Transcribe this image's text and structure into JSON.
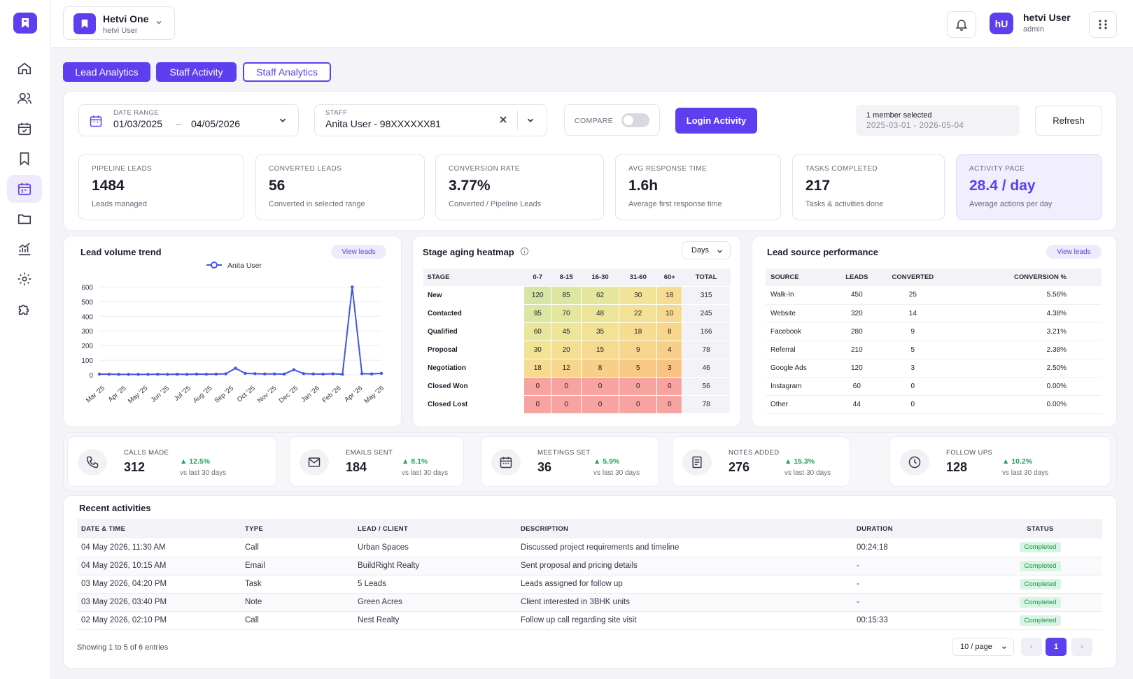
{
  "org": {
    "name": "Hetvi One",
    "sub": "hetvi User"
  },
  "user": {
    "initials": "hU",
    "name": "hetvi User",
    "role": "admin"
  },
  "tabs": [
    "Lead Analytics",
    "Staff Activity",
    "Staff Analytics"
  ],
  "filters": {
    "date_label": "DATE RANGE",
    "date_from": "01/03/2025",
    "date_sep": "–",
    "date_to": "04/05/2026",
    "staff_label": "STAFF",
    "staff_value": "Anita User - 98XXXXXX81",
    "compare_label": "COMPARE",
    "login_btn": "Login Activity",
    "selected_title": "1 member selected",
    "selected_range": "2025-03-01 - 2026-05-04",
    "refresh_btn": "Refresh"
  },
  "kpis": [
    {
      "label": "PIPELINE LEADS",
      "value": "1484",
      "sub": "Leads managed"
    },
    {
      "label": "CONVERTED LEADS",
      "value": "56",
      "sub": "Converted in selected range"
    },
    {
      "label": "CONVERSION RATE",
      "value": "3.77%",
      "sub": "Converted / Pipeline Leads"
    },
    {
      "label": "AVG RESPONSE TIME",
      "value": "1.6h",
      "sub": "Average first response time"
    },
    {
      "label": "TASKS COMPLETED",
      "value": "217",
      "sub": "Tasks & activities done"
    },
    {
      "label": "ACTIVITY PACE",
      "value": "28.4 / day",
      "sub": "Average actions per day"
    }
  ],
  "trend": {
    "title": "Lead volume trend",
    "view_btn": "View leads"
  },
  "chart_data": {
    "type": "line",
    "series": [
      {
        "name": "Anita User",
        "values": [
          5,
          4,
          3,
          3,
          3,
          3,
          4,
          3,
          4,
          3,
          5,
          4,
          5,
          7,
          45,
          10,
          8,
          6,
          6,
          5,
          35,
          8,
          6,
          5,
          7,
          4,
          600,
          8,
          6,
          10
        ]
      }
    ],
    "x": [
      0,
      1,
      2,
      3,
      4,
      5,
      6,
      7,
      8,
      9,
      10,
      11,
      12,
      13,
      14,
      15,
      16,
      17,
      18,
      19,
      20,
      21,
      22,
      23,
      24,
      25,
      26,
      27,
      28,
      29
    ],
    "tick_labels": [
      "Mar '25",
      "Apr '25",
      "May '25",
      "Jun '25",
      "Jul '25",
      "Aug '25",
      "Sep '25",
      "Oct '25",
      "Nov '25",
      "Dec '25",
      "Jan '26",
      "Feb '26",
      "Apr '26",
      "May '26"
    ],
    "yticks": [
      0,
      100,
      200,
      300,
      400,
      500,
      600
    ],
    "ylim": [
      0,
      650
    ],
    "legend": "top-center",
    "color": "#3f56e6"
  },
  "heatmap": {
    "title": "Stage aging heatmap",
    "dropdown": "Days",
    "headers": [
      "STAGE",
      "0-7",
      "8-15",
      "16-30",
      "31-60",
      "60+",
      "TOTAL"
    ],
    "rows": [
      {
        "stage": "New",
        "cells": [
          "120",
          "85",
          "62",
          "30",
          "18"
        ],
        "total": "315"
      },
      {
        "stage": "Contacted",
        "cells": [
          "95",
          "70",
          "48",
          "22",
          "10"
        ],
        "total": "245"
      },
      {
        "stage": "Qualified",
        "cells": [
          "60",
          "45",
          "35",
          "18",
          "8"
        ],
        "total": "166"
      },
      {
        "stage": "Proposal",
        "cells": [
          "30",
          "20",
          "15",
          "9",
          "4"
        ],
        "total": "78"
      },
      {
        "stage": "Negotiation",
        "cells": [
          "18",
          "12",
          "8",
          "5",
          "3"
        ],
        "total": "46"
      },
      {
        "stage": "Closed Won",
        "cells": [
          "0",
          "0",
          "0",
          "0",
          "0"
        ],
        "total": "56"
      },
      {
        "stage": "Closed Lost",
        "cells": [
          "0",
          "0",
          "0",
          "0",
          "0"
        ],
        "total": "78"
      }
    ],
    "colors": [
      [
        "#d5e5a3",
        "#dce6a0",
        "#e4e69c",
        "#f2e399",
        "#f6dc91"
      ],
      [
        "#dce6a0",
        "#e4e69c",
        "#ece598",
        "#f4e195",
        "#f6da90"
      ],
      [
        "#e7e69c",
        "#ede598",
        "#f3e294",
        "#f6dc91",
        "#f7d68c"
      ],
      [
        "#f2e395",
        "#f5df92",
        "#f6da90",
        "#f7d58c",
        "#f8cf88"
      ],
      [
        "#f6db91",
        "#f7d58c",
        "#f8cf88",
        "#f8c985",
        "#f8c283"
      ],
      [
        "#f7a3a0",
        "#f7a3a0",
        "#f7a3a0",
        "#f7a3a0",
        "#f7a3a0"
      ],
      [
        "#f7a3a0",
        "#f7a3a0",
        "#f7a3a0",
        "#f7a3a0",
        "#f7a3a0"
      ]
    ]
  },
  "sources": {
    "title": "Lead source performance",
    "view_btn": "View leads",
    "headers": [
      "SOURCE",
      "LEADS",
      "CONVERTED",
      "CONVERSION %"
    ],
    "rows": [
      [
        "Walk-In",
        "450",
        "25",
        "5.56%"
      ],
      [
        "Website",
        "320",
        "14",
        "4.38%"
      ],
      [
        "Facebook",
        "280",
        "9",
        "3.21%"
      ],
      [
        "Referral",
        "210",
        "5",
        "2.38%"
      ],
      [
        "Google Ads",
        "120",
        "3",
        "2.50%"
      ],
      [
        "Instagram",
        "60",
        "0",
        "0.00%"
      ],
      [
        "Other",
        "44",
        "0",
        "0.00%"
      ]
    ]
  },
  "stats": [
    {
      "label": "CALLS MADE",
      "value": "312",
      "delta": "12.5%",
      "cmp": "vs last 30 days",
      "icon": "phone-icon"
    },
    {
      "label": "EMAILS SENT",
      "value": "184",
      "delta": "8.1%",
      "cmp": "vs last 30 days",
      "icon": "mail-icon"
    },
    {
      "label": "MEETINGS SET",
      "value": "36",
      "delta": "5.9%",
      "cmp": "vs last 30 days",
      "icon": "calendar-icon"
    },
    {
      "label": "NOTES ADDED",
      "value": "276",
      "delta": "15.3%",
      "cmp": "vs last 30 days",
      "icon": "note-icon"
    },
    {
      "label": "FOLLOW UPS",
      "value": "128",
      "delta": "10.2%",
      "cmp": "vs last 30 days",
      "icon": "clock-icon"
    }
  ],
  "activities": {
    "title": "Recent activities",
    "headers": [
      "DATE & TIME",
      "TYPE",
      "LEAD / CLIENT",
      "DESCRIPTION",
      "DURATION",
      "STATUS"
    ],
    "rows": [
      [
        "04 May 2026, 11:30 AM",
        "Call",
        "Urban Spaces",
        "Discussed project requirements and timeline",
        "00:24:18",
        "Completed"
      ],
      [
        "04 May 2026, 10:15 AM",
        "Email",
        "BuildRight Realty",
        "Sent proposal and pricing details",
        "-",
        "Completed"
      ],
      [
        "03 May 2026, 04:20 PM",
        "Task",
        "5 Leads",
        "Leads assigned for follow up",
        "-",
        "Completed"
      ],
      [
        "03 May 2026, 03:40 PM",
        "Note",
        "Green Acres",
        "Client interested in 3BHK units",
        "-",
        "Completed"
      ],
      [
        "02 May 2026, 02:10 PM",
        "Call",
        "Nest Realty",
        "Follow up call regarding site visit",
        "00:15:33",
        "Completed"
      ]
    ],
    "showing": "Showing 1 to 5 of 6 entries",
    "per_page": "10 / page",
    "page": "1",
    "prev": "‹",
    "next": "›"
  }
}
